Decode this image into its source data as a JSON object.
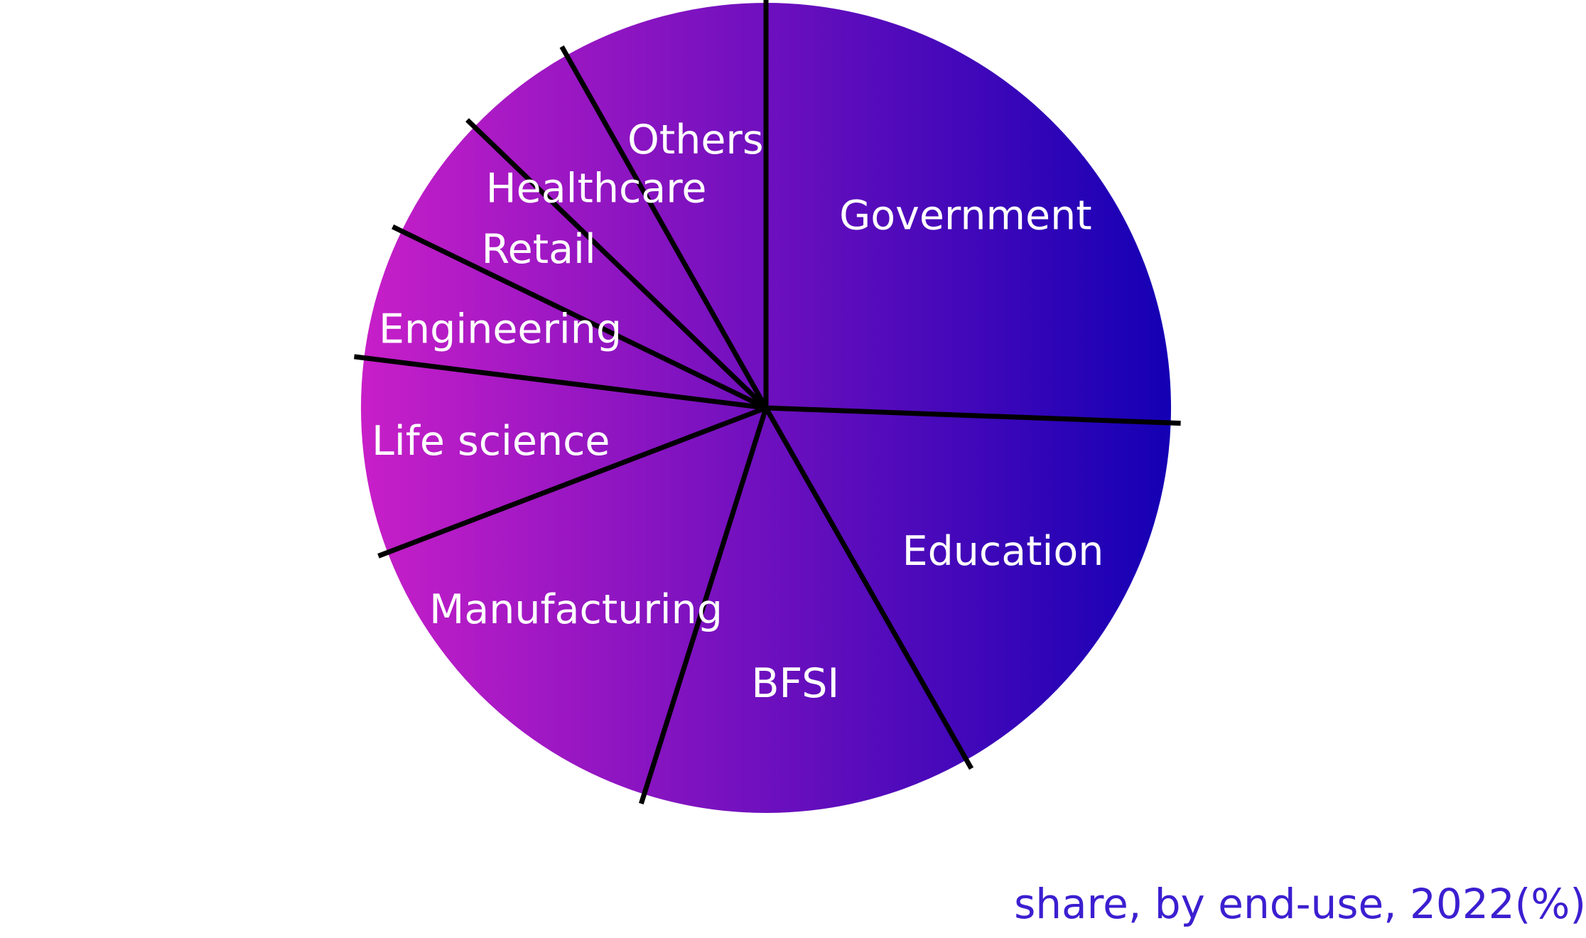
{
  "chart_data": {
    "type": "pie",
    "title": "",
    "caption": "share, by end-use, 2022(%)",
    "slices": [
      {
        "label": "Government",
        "value": 25.0
      },
      {
        "label": "Education",
        "value": 15.8
      },
      {
        "label": "BFSI",
        "value": 12.8
      },
      {
        "label": "Manufacturing",
        "value": 14.0
      },
      {
        "label": "Life science",
        "value": 7.6
      },
      {
        "label": "Engineering",
        "value": 5.1
      },
      {
        "label": "Retail",
        "value": 4.9
      },
      {
        "label": "Healthcare",
        "value": 4.5
      },
      {
        "label": "Others",
        "value": 8.0
      }
    ],
    "start": "top",
    "direction": "clockwise",
    "legend": "none",
    "colors": {
      "gradient_left": "#c81fc8",
      "gradient_right": "#1400b4",
      "divider": "#000000",
      "label": "#ffffff",
      "caption": "#3b1fd0"
    }
  }
}
